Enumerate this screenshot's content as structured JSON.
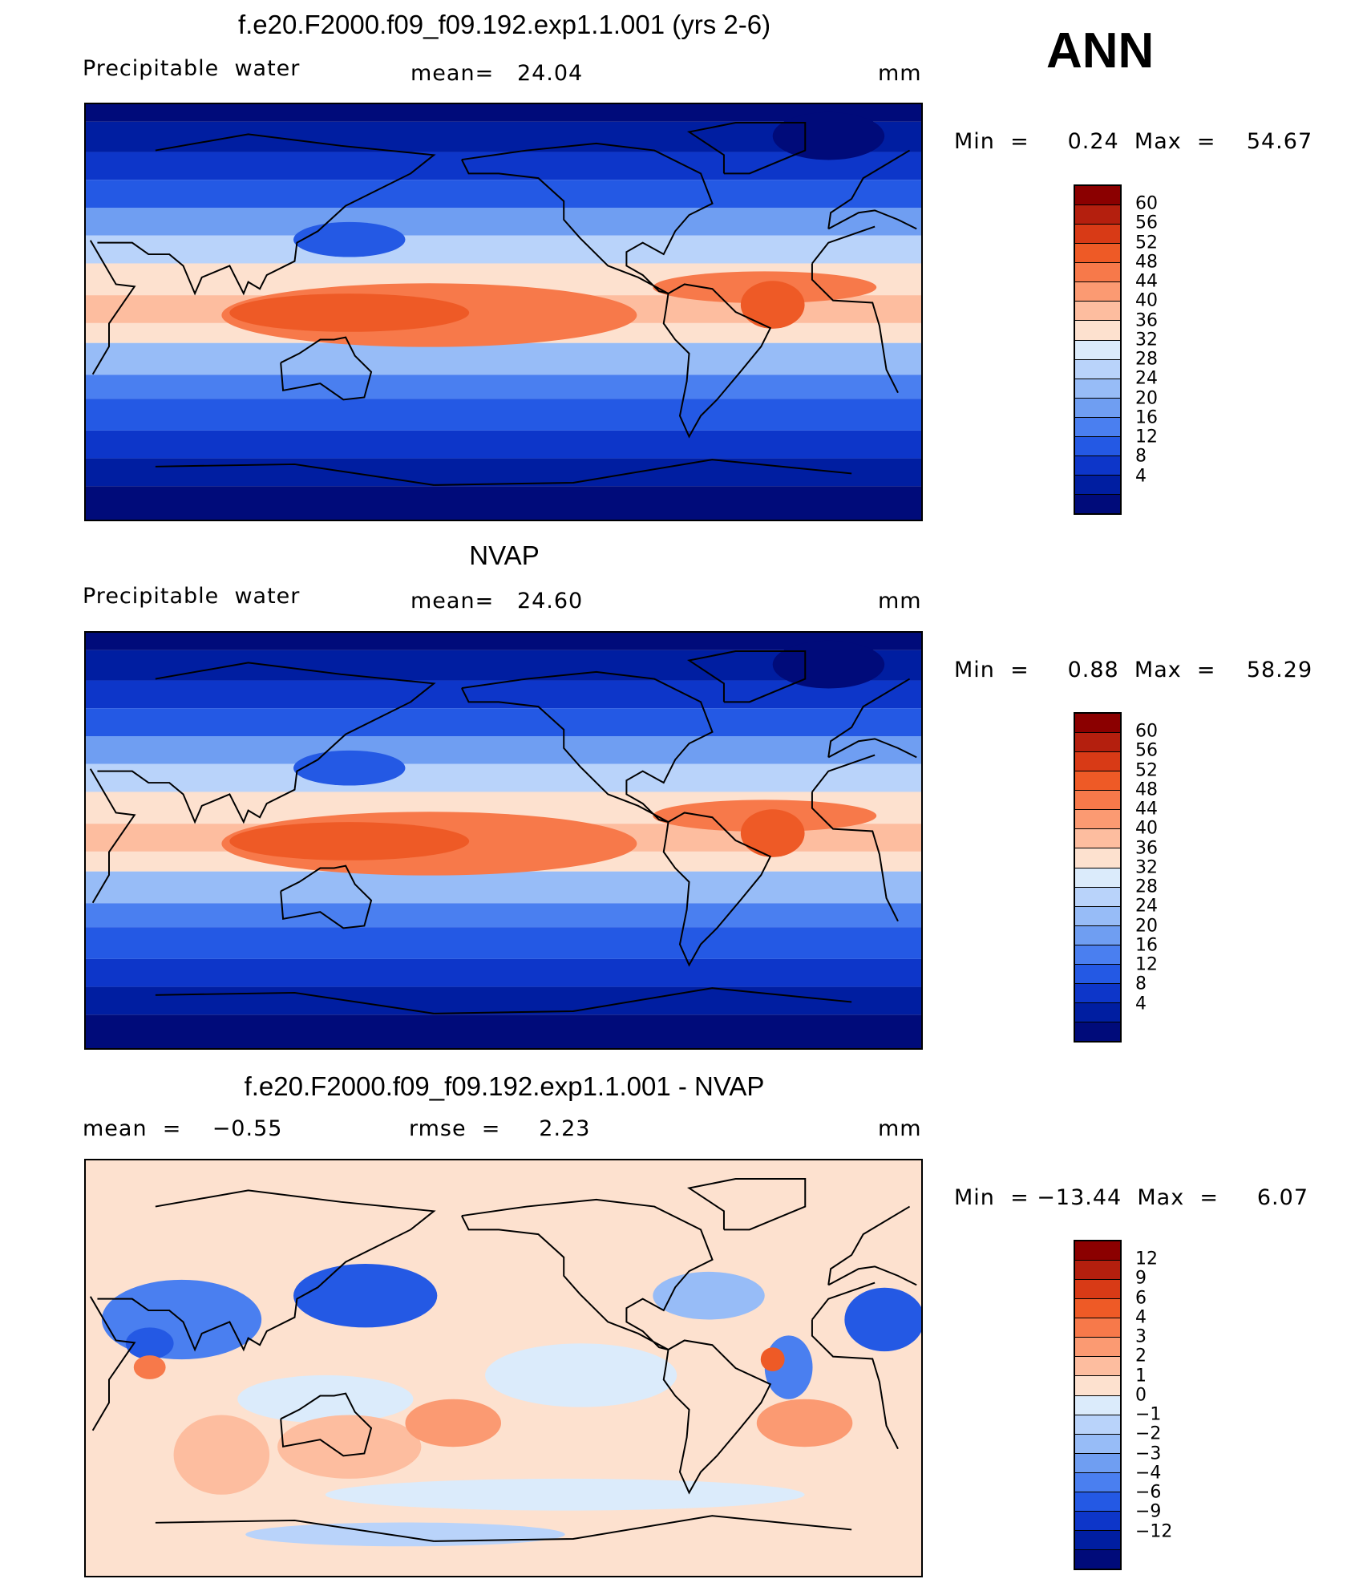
{
  "season": "ANN",
  "panels": [
    {
      "title": "f.e20.F2000.f09_f09.192.exp1.1.001 (yrs 2-6)",
      "left_label": "Precipitable  water",
      "center_label": "mean=   24.04",
      "units": "mm",
      "minmax": "Min  =     0.24  Max  =    54.67",
      "colors": [
        "#8b0000",
        "#b41f0e",
        "#d83a16",
        "#ee5a26",
        "#f7794a",
        "#fb9a72",
        "#fdbd9f",
        "#fde1cf",
        "#dbebfb",
        "#b9d3fa",
        "#97bcf7",
        "#6f9ef2",
        "#4a7ff0",
        "#2459e4",
        "#0d36c9",
        "#001ea1",
        "#000b7a"
      ],
      "ticks": [
        "60",
        "56",
        "52",
        "48",
        "44",
        "40",
        "36",
        "32",
        "28",
        "24",
        "20",
        "16",
        "12",
        "8",
        "4"
      ],
      "field": "model"
    },
    {
      "title": "NVAP",
      "left_label": "Precipitable  water",
      "center_label": "mean=   24.60",
      "units": "mm",
      "minmax": "Min  =     0.88  Max  =    58.29",
      "colors": [
        "#8b0000",
        "#b41f0e",
        "#d83a16",
        "#ee5a26",
        "#f7794a",
        "#fb9a72",
        "#fdbd9f",
        "#fde1cf",
        "#dbebfb",
        "#b9d3fa",
        "#97bcf7",
        "#6f9ef2",
        "#4a7ff0",
        "#2459e4",
        "#0d36c9",
        "#001ea1",
        "#000b7a"
      ],
      "ticks": [
        "60",
        "56",
        "52",
        "48",
        "44",
        "40",
        "36",
        "32",
        "28",
        "24",
        "20",
        "16",
        "12",
        "8",
        "4"
      ],
      "field": "obs"
    },
    {
      "title": "f.e20.F2000.f09_f09.192.exp1.1.001 - NVAP",
      "left_label": "mean  =    −0.55",
      "center_label": "rmse  =     2.23",
      "units": "mm",
      "minmax": "Min  = −13.44  Max  =     6.07",
      "colors": [
        "#8b0000",
        "#b41f0e",
        "#d83a16",
        "#ee5a26",
        "#f7794a",
        "#fb9a72",
        "#fdbd9f",
        "#fde1cf",
        "#dbebfb",
        "#b9d3fa",
        "#97bcf7",
        "#6f9ef2",
        "#4a7ff0",
        "#2459e4",
        "#0d36c9",
        "#001ea1",
        "#000b7a"
      ],
      "ticks": [
        "12",
        "9",
        "6",
        "4",
        "3",
        "2",
        "1",
        "0",
        "−1",
        "−2",
        "−3",
        "−4",
        "−6",
        "−9",
        "−12"
      ],
      "field": "diff"
    }
  ]
}
